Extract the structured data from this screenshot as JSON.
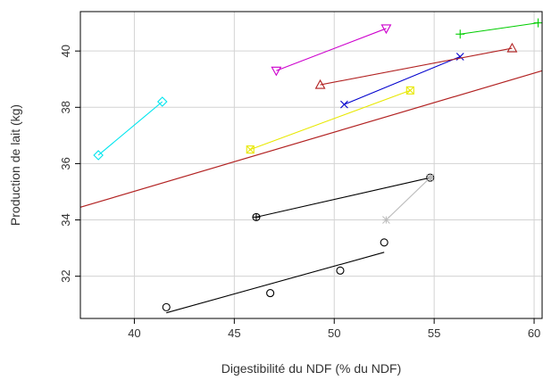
{
  "chart_data": {
    "type": "scatter",
    "title": "",
    "xlabel": "Digestibilité du NDF (% du NDF)",
    "ylabel": "Production de lait (kg)",
    "xlim": [
      37.3,
      60.4
    ],
    "ylim": [
      30.5,
      41.4
    ],
    "xticks": [
      "40",
      "45",
      "50",
      "55",
      "60"
    ],
    "yticks": [
      "32",
      "34",
      "36",
      "38",
      "40"
    ],
    "grid": true,
    "series": [
      {
        "marker": "circle",
        "color": "#000000",
        "points": [
          [
            41.6,
            30.9
          ],
          [
            46.8,
            31.4
          ],
          [
            50.3,
            32.2
          ],
          [
            52.5,
            33.2
          ]
        ],
        "fit": [
          [
            41.6,
            30.7
          ],
          [
            52.5,
            32.85
          ]
        ]
      },
      {
        "marker": "circle-plus",
        "color": "#000000",
        "points": [
          [
            46.1,
            34.1
          ],
          [
            54.8,
            35.5
          ]
        ]
      },
      {
        "marker": "asterisk",
        "color": "#bebebe",
        "points": [
          [
            52.6,
            34.0
          ],
          [
            54.8,
            35.5
          ]
        ]
      },
      {
        "marker": "diamond",
        "color": "#00e5ee",
        "points": [
          [
            38.2,
            36.3
          ],
          [
            41.4,
            38.2
          ]
        ]
      },
      {
        "marker": "square-x",
        "color": "#e8e800",
        "points": [
          [
            45.8,
            36.5
          ],
          [
            53.8,
            38.6
          ]
        ]
      },
      {
        "marker": "x",
        "color": "#0000cd",
        "points": [
          [
            50.5,
            38.1
          ],
          [
            56.3,
            39.8
          ]
        ]
      },
      {
        "marker": "triangle",
        "color": "#b22222",
        "points": [
          [
            49.3,
            38.8
          ],
          [
            58.9,
            40.1
          ]
        ]
      },
      {
        "marker": "inverted-triangle",
        "color": "#cd00cd",
        "points": [
          [
            47.1,
            39.3
          ],
          [
            52.6,
            40.8
          ]
        ]
      },
      {
        "marker": "plus",
        "color": "#00cd00",
        "points": [
          [
            56.3,
            40.6
          ],
          [
            60.2,
            41.0
          ]
        ]
      }
    ],
    "overall_fit": {
      "color": "#b22222",
      "points": [
        [
          37.3,
          34.45
        ],
        [
          60.4,
          39.3
        ]
      ]
    }
  }
}
